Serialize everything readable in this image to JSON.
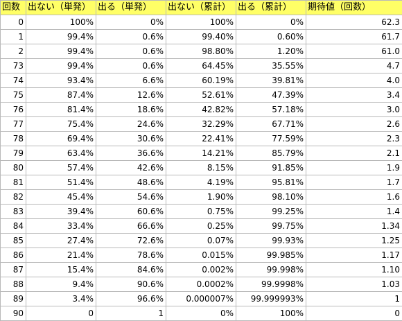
{
  "table": {
    "headers": [
      "回数",
      "出ない（単発）",
      "出る（単発）",
      "出ない（累計）",
      "出る（累計）",
      "期待値（回数）"
    ],
    "rows": [
      [
        "0",
        "100%",
        "0%",
        "100%",
        "0%",
        "62.3"
      ],
      [
        "1",
        "99.4%",
        "0.6%",
        "99.40%",
        "0.60%",
        "61.7"
      ],
      [
        "2",
        "99.4%",
        "0.6%",
        "98.80%",
        "1.20%",
        "61.0"
      ],
      [
        "73",
        "99.4%",
        "0.6%",
        "64.45%",
        "35.55%",
        "4.7"
      ],
      [
        "74",
        "93.4%",
        "6.6%",
        "60.19%",
        "39.81%",
        "4.0"
      ],
      [
        "75",
        "87.4%",
        "12.6%",
        "52.61%",
        "47.39%",
        "3.4"
      ],
      [
        "76",
        "81.4%",
        "18.6%",
        "42.82%",
        "57.18%",
        "3.0"
      ],
      [
        "77",
        "75.4%",
        "24.6%",
        "32.29%",
        "67.71%",
        "2.6"
      ],
      [
        "78",
        "69.4%",
        "30.6%",
        "22.41%",
        "77.59%",
        "2.3"
      ],
      [
        "79",
        "63.4%",
        "36.6%",
        "14.21%",
        "85.79%",
        "2.1"
      ],
      [
        "80",
        "57.4%",
        "42.6%",
        "8.15%",
        "91.85%",
        "1.9"
      ],
      [
        "81",
        "51.4%",
        "48.6%",
        "4.19%",
        "95.81%",
        "1.7"
      ],
      [
        "82",
        "45.4%",
        "54.6%",
        "1.90%",
        "98.10%",
        "1.6"
      ],
      [
        "83",
        "39.4%",
        "60.6%",
        "0.75%",
        "99.25%",
        "1.4"
      ],
      [
        "84",
        "33.4%",
        "66.6%",
        "0.25%",
        "99.75%",
        "1.34"
      ],
      [
        "85",
        "27.4%",
        "72.6%",
        "0.07%",
        "99.93%",
        "1.25"
      ],
      [
        "86",
        "21.4%",
        "78.6%",
        "0.015%",
        "99.985%",
        "1.17"
      ],
      [
        "87",
        "15.4%",
        "84.6%",
        "0.002%",
        "99.998%",
        "1.10"
      ],
      [
        "88",
        "9.4%",
        "90.6%",
        "0.0002%",
        "99.9998%",
        "1.03"
      ],
      [
        "89",
        "3.4%",
        "96.6%",
        "0.000007%",
        "99.999993%",
        "1"
      ],
      [
        "90",
        "0",
        "1",
        "0%",
        "100%",
        "0"
      ]
    ]
  },
  "colors": {
    "header_background": "#ffff66",
    "grid_line": "#b9b9b9"
  }
}
